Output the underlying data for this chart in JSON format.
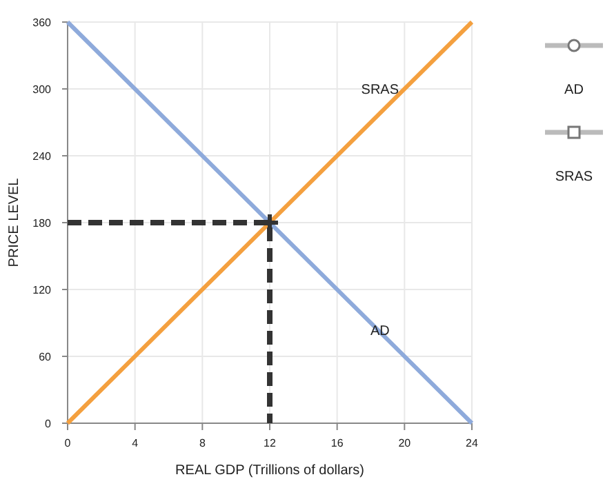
{
  "chart_data": {
    "type": "line",
    "xlabel": "REAL GDP (Trillions of dollars)",
    "ylabel": "PRICE LEVEL",
    "xlim": [
      0,
      24
    ],
    "xticks": [
      0,
      4,
      8,
      12,
      16,
      20,
      24
    ],
    "ylim": [
      0,
      360
    ],
    "yticks": [
      0,
      60,
      120,
      180,
      240,
      300,
      360
    ],
    "grid": true,
    "series": [
      {
        "name": "AD",
        "color": "#8eaadb",
        "x": [
          0,
          24
        ],
        "values": [
          360,
          0
        ],
        "marker": "none"
      },
      {
        "name": "SRAS",
        "color": "#f4a03f",
        "x": [
          0,
          24
        ],
        "values": [
          0,
          360
        ],
        "marker": "none"
      },
      {
        "color": "#333333",
        "x": [
          0,
          12,
          12
        ],
        "values": [
          180,
          180,
          0
        ],
        "line_style": "dashed",
        "marker": "none"
      },
      {
        "type": "scatter",
        "color": "#333333",
        "x": [
          12
        ],
        "values": [
          180
        ],
        "marker": "cross"
      }
    ],
    "annotations": [
      "AD",
      "SRAS"
    ]
  }
}
